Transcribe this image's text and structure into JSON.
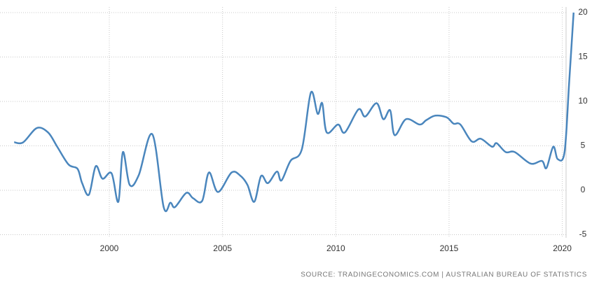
{
  "chart_data": {
    "type": "line",
    "source": "SOURCE: TRADINGECONOMICS.COM | AUSTRALIAN BUREAU OF STATISTICS",
    "x": [
      1995.8,
      1996.2,
      1996.8,
      1997.3,
      1997.7,
      1998.2,
      1998.6,
      1998.8,
      1999.1,
      1999.4,
      1999.7,
      2000.1,
      2000.4,
      2000.6,
      2000.9,
      2001.3,
      2001.9,
      2002.4,
      2002.7,
      2002.9,
      2003.4,
      2003.7,
      2004.1,
      2004.4,
      2004.8,
      2005.4,
      2005.8,
      2006.1,
      2006.4,
      2006.7,
      2007.0,
      2007.4,
      2007.6,
      2008.0,
      2008.5,
      2008.9,
      2009.2,
      2009.4,
      2009.6,
      2010.1,
      2010.4,
      2011.0,
      2011.3,
      2011.8,
      2012.1,
      2012.4,
      2012.6,
      2013.1,
      2013.7,
      2014.0,
      2014.4,
      2014.9,
      2015.2,
      2015.5,
      2016.0,
      2016.4,
      2016.9,
      2017.1,
      2017.5,
      2017.9,
      2018.6,
      2019.1,
      2019.3,
      2019.6,
      2019.8,
      2020.1,
      2020.3,
      2020.5
    ],
    "series": [
      {
        "color": "#4a86bd",
        "values": [
          5.4,
          5.4,
          7.0,
          6.5,
          4.9,
          2.9,
          2.4,
          0.8,
          -0.5,
          2.7,
          1.3,
          1.9,
          -1.3,
          4.3,
          0.6,
          1.7,
          6.3,
          -1.9,
          -1.4,
          -1.9,
          -0.3,
          -0.9,
          -1.2,
          2.0,
          -0.2,
          2.0,
          1.6,
          0.6,
          -1.3,
          1.6,
          0.8,
          2.1,
          1.1,
          3.3,
          4.6,
          11.0,
          8.6,
          9.8,
          6.5,
          7.4,
          6.5,
          9.1,
          8.3,
          9.8,
          8.0,
          9.0,
          6.2,
          8.0,
          7.4,
          7.9,
          8.4,
          8.2,
          7.5,
          7.4,
          5.5,
          5.8,
          4.9,
          5.3,
          4.3,
          4.3,
          3.0,
          3.3,
          2.5,
          4.9,
          3.5,
          4.3,
          12.0,
          20.0
        ]
      }
    ],
    "xlim": [
      1995.7,
      2020.6
    ],
    "xticks": [
      2000,
      2005,
      2010,
      2015,
      2020
    ],
    "ylim": [
      -5.2,
      20
    ],
    "yticks": [
      -5,
      0,
      5,
      10,
      15,
      20
    ],
    "grid": true
  }
}
